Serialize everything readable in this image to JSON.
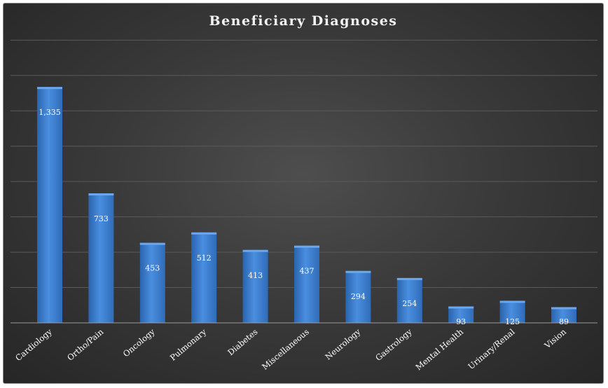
{
  "chart_data": {
    "type": "bar",
    "title": "Beneficiary Diagnoses",
    "categories": [
      "Cardiology",
      "Ortho/Pain",
      "Oncology",
      "Pulmonary",
      "Diabetes",
      "Miscellaneous",
      "Neurology",
      "Gastrology",
      "Mental Health",
      "Urinary/Renal",
      "Vision"
    ],
    "values": [
      1335,
      733,
      453,
      512,
      413,
      437,
      294,
      254,
      93,
      125,
      89
    ],
    "data_labels": [
      "1,335",
      "733",
      "453",
      "512",
      "413",
      "437",
      "294",
      "254",
      "93",
      "125",
      "89"
    ],
    "xlabel": "",
    "ylabel": "",
    "ylim": [
      0,
      1600
    ],
    "y_gridline_step": 200,
    "grid": true,
    "y_tick_labels_shown": false,
    "legend": "none",
    "bar_color": "#3d7fd0",
    "background_color": "#3b3b3b",
    "text_color": "#ffffff"
  }
}
